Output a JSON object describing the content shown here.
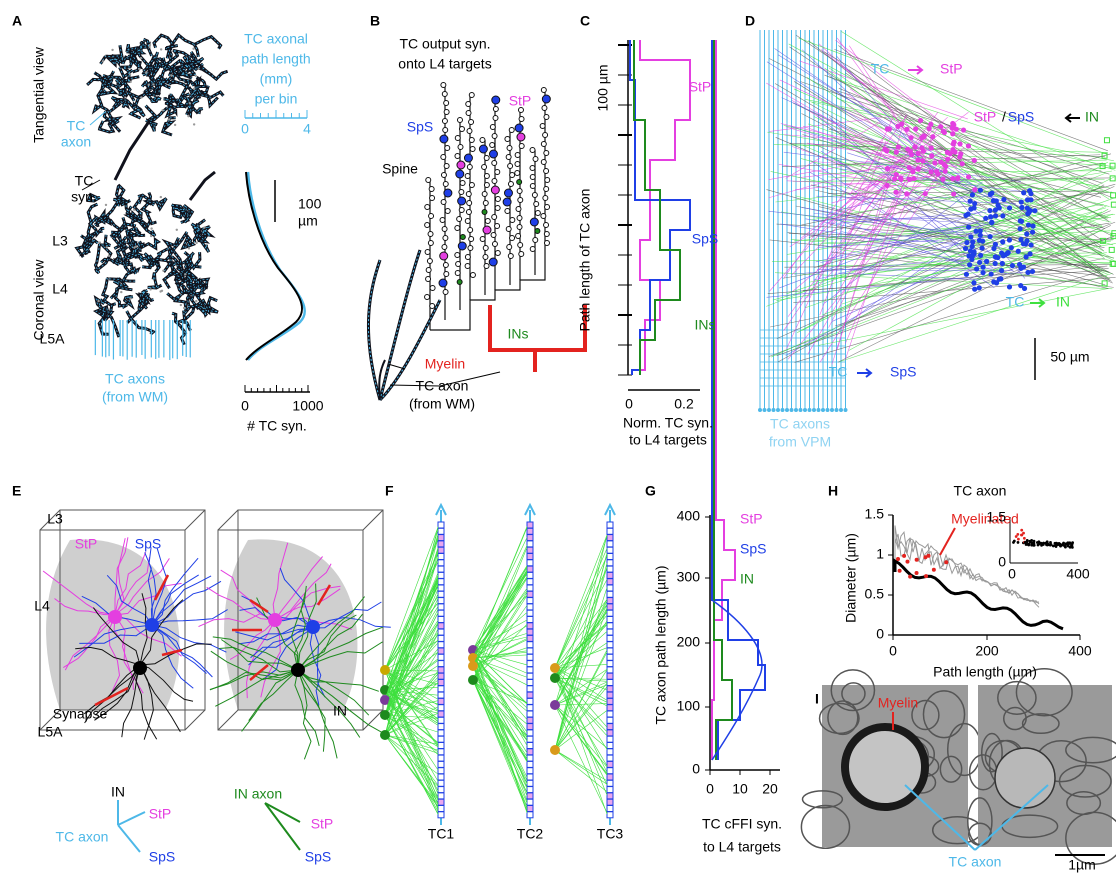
{
  "panels": {
    "A": {
      "label": "A",
      "texts": [
        "Tangential view",
        "TC",
        "axon",
        "TC",
        "syn.",
        "TC axonal",
        "path length",
        "(mm)",
        "per bin",
        "0",
        "4",
        "100",
        "µm",
        "L3",
        "L4",
        "Coronal view",
        "L5A",
        "TC axons",
        "(from WM)",
        "0",
        "1000",
        "# TC syn."
      ]
    },
    "B": {
      "label": "B",
      "texts": [
        "TC output syn.",
        "onto L4 targets",
        "StP",
        "SpS",
        "Spine",
        "Myelin",
        "INs",
        "TC axon",
        "(from WM)"
      ]
    },
    "C": {
      "label": "C",
      "texts": [
        "100 µm",
        "StP",
        "SpS",
        "INs",
        "Path length of TC axon",
        "0",
        "0.2",
        "Norm. TC syn.",
        "to L4 targets"
      ]
    },
    "D": {
      "label": "D",
      "texts": [
        "TC",
        "StP",
        "StP",
        "/",
        "SpS",
        "IN",
        "TC",
        "IN",
        "TC",
        "SpS",
        "50 µm",
        "TC axons",
        "from VPM"
      ]
    },
    "E": {
      "label": "E",
      "texts": [
        "L3",
        "StP",
        "SpS",
        "L4",
        "Synapse",
        "L5A",
        "IN",
        "IN",
        "StP",
        "TC axon",
        "SpS",
        "IN axon",
        "StP",
        "SpS"
      ]
    },
    "F": {
      "label": "F",
      "texts": [
        "TC1",
        "TC2",
        "TC3"
      ]
    },
    "G": {
      "label": "G",
      "texts": [
        "400",
        "300",
        "200",
        "100",
        "0",
        "StP",
        "SpS",
        "IN",
        "TC axon path length (µm)",
        "0",
        "10",
        "20",
        "TC cFFI syn.",
        "to L4 targets"
      ]
    },
    "H": {
      "label": "H",
      "texts": [
        "TC axon",
        "1.5",
        "1",
        "0.5",
        "0",
        "Myelinated",
        "Diameter (µm)",
        "0",
        "200",
        "400",
        "Path length (µm)",
        "1.5",
        "0",
        "0",
        "400"
      ]
    },
    "I": {
      "label": "I",
      "texts": [
        "Myelin",
        "TC axon",
        "1µm"
      ]
    }
  }
}
